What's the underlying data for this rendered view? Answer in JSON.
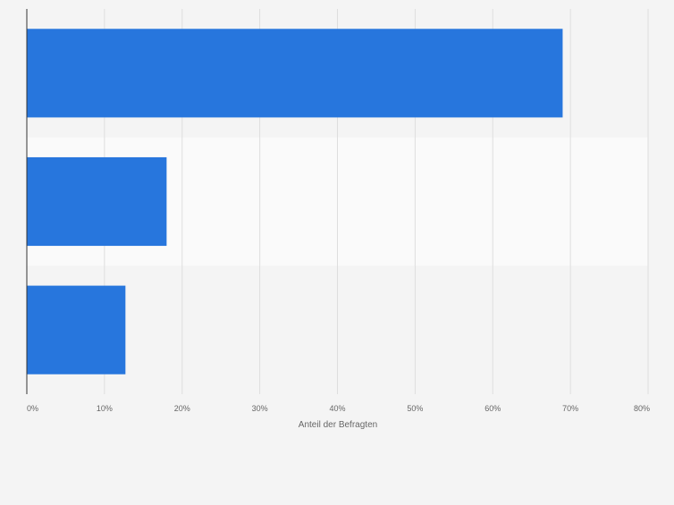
{
  "chart_data": {
    "type": "bar",
    "orientation": "horizontal",
    "categories": [
      "",
      "",
      ""
    ],
    "values": [
      69,
      18,
      12.7
    ],
    "xlabel": "Anteil der Befragten",
    "ylabel": "",
    "xlim": [
      0,
      80
    ],
    "xticks": [
      0,
      10,
      20,
      30,
      40,
      50,
      60,
      70,
      80
    ],
    "xtick_labels": [
      "0%",
      "10%",
      "20%",
      "30%",
      "40%",
      "50%",
      "60%",
      "70%",
      "80%"
    ],
    "grid": true,
    "legend": "none",
    "colors": {
      "bar": "#2776dd",
      "background": "#f4f4f4",
      "band": "#fafafa",
      "grid": "#dedede",
      "axis": "#333333",
      "text": "#666666"
    }
  }
}
